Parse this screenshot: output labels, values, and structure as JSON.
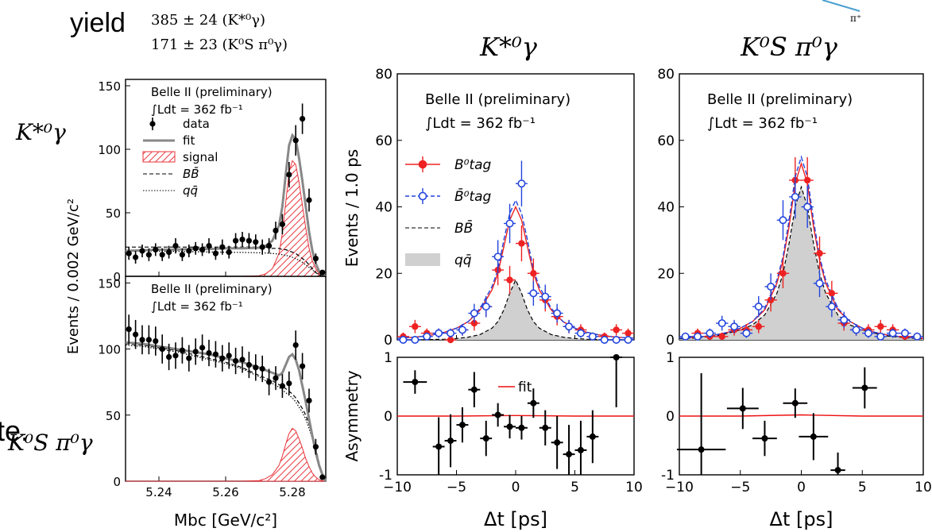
{
  "header": {
    "yield_label": "yield",
    "yield_kstar": "385 ± 24 (K*⁰γ)",
    "yield_ks": "171 ± 23 (K⁰S π⁰γ)"
  },
  "overlay": {
    "pi_label": "π⁺",
    "fragment_text": "te."
  },
  "colors": {
    "data": "#000000",
    "fit_gray": "#888888",
    "signal": "#e8333a",
    "btag": "#ee2222",
    "btagbar": "#2244dd",
    "qq_fill": "#d0d0d0",
    "frame": "#000000"
  },
  "chart_data": [
    {
      "id": "mbc_kstar",
      "type": "scatter",
      "row_label": "K*⁰γ",
      "xlim": [
        5.23,
        5.29
      ],
      "ylim": [
        0,
        155
      ],
      "yticks": [
        0,
        50,
        100,
        150
      ],
      "xticks": [
        5.24,
        5.26,
        5.28
      ],
      "show_xtick_labels": false,
      "ylabel": "Events / 0.002 GeV/c²",
      "xlabel": "",
      "text": [
        "Belle II (preliminary)",
        "∫Ldt = 362 fb⁻¹"
      ],
      "legend": [
        {
          "name": "data",
          "style": "data"
        },
        {
          "name": "fit",
          "style": "fit"
        },
        {
          "name": "signal",
          "style": "signal"
        },
        {
          "name": "BB̄",
          "style": "dashed"
        },
        {
          "name": "qq̄",
          "style": "dotted"
        }
      ],
      "data": {
        "x": [
          5.231,
          5.233,
          5.235,
          5.237,
          5.239,
          5.241,
          5.243,
          5.245,
          5.247,
          5.249,
          5.251,
          5.253,
          5.255,
          5.257,
          5.259,
          5.261,
          5.263,
          5.265,
          5.267,
          5.269,
          5.271,
          5.273,
          5.275,
          5.277,
          5.279,
          5.281,
          5.283,
          5.285,
          5.287,
          5.289
        ],
        "y": [
          18,
          15,
          20,
          17,
          21,
          17,
          19,
          24,
          17,
          20,
          22,
          21,
          24,
          18,
          23,
          19,
          28,
          29,
          28,
          27,
          23,
          24,
          36,
          41,
          80,
          107,
          124,
          60,
          14,
          3
        ],
        "err": [
          5,
          5,
          5,
          5,
          5,
          5,
          5,
          6,
          5,
          5,
          5,
          5,
          6,
          5,
          6,
          5,
          6,
          6,
          6,
          6,
          6,
          6,
          7,
          8,
          10,
          12,
          12,
          9,
          4,
          2
        ]
      },
      "curves": {
        "x": [
          5.23,
          5.235,
          5.24,
          5.245,
          5.25,
          5.255,
          5.26,
          5.265,
          5.27,
          5.272,
          5.274,
          5.276,
          5.277,
          5.278,
          5.279,
          5.28,
          5.281,
          5.282,
          5.283,
          5.284,
          5.285,
          5.286,
          5.287,
          5.288,
          5.289,
          5.29
        ],
        "fit": [
          20,
          20.5,
          21,
          21,
          21.5,
          21.5,
          22,
          22,
          22.5,
          24,
          28,
          40,
          55,
          80,
          103,
          111,
          108,
          93,
          75,
          55,
          35,
          20,
          10,
          4,
          1,
          0
        ],
        "signal": [
          0,
          0,
          0,
          0,
          0,
          0,
          0,
          0,
          0.5,
          2,
          6,
          18,
          34,
          58,
          82,
          91,
          88,
          74,
          56,
          38,
          22,
          12,
          6,
          2,
          0.5,
          0
        ],
        "bb": [
          23,
          23,
          23,
          23,
          23,
          23,
          23,
          23,
          23,
          23,
          22,
          22,
          21,
          21,
          20,
          19,
          18,
          16,
          14,
          12,
          9,
          6,
          3,
          1,
          0,
          0
        ],
        "qq": [
          20,
          20,
          19.8,
          19.6,
          19.4,
          19.2,
          19,
          18.8,
          18.5,
          18.3,
          18,
          17.5,
          17,
          16.5,
          16,
          15,
          14,
          12.5,
          11,
          9,
          7,
          5,
          3,
          1.5,
          0.5,
          0
        ]
      }
    },
    {
      "id": "mbc_ks",
      "type": "scatter",
      "row_label": "K⁰S π⁰γ",
      "xlim": [
        5.23,
        5.29
      ],
      "ylim": [
        0,
        155
      ],
      "yticks": [
        0,
        50,
        100,
        150
      ],
      "xticks": [
        5.24,
        5.26,
        5.28
      ],
      "show_xtick_labels": true,
      "xlabel": "Mbc [GeV/c²]",
      "text": [
        "Belle II (preliminary)",
        "∫Ldt = 362 fb⁻¹"
      ],
      "data": {
        "x": [
          5.231,
          5.233,
          5.235,
          5.237,
          5.239,
          5.241,
          5.243,
          5.245,
          5.247,
          5.249,
          5.251,
          5.253,
          5.255,
          5.257,
          5.259,
          5.261,
          5.263,
          5.265,
          5.267,
          5.269,
          5.271,
          5.273,
          5.275,
          5.277,
          5.279,
          5.281,
          5.283,
          5.285,
          5.287,
          5.289
        ],
        "y": [
          115,
          111,
          107,
          107,
          106,
          100,
          94,
          95,
          99,
          93,
          98,
          101,
          97,
          96,
          93,
          95,
          91,
          92,
          88,
          86,
          85,
          75,
          78,
          72,
          74,
          103,
          87,
          61,
          26,
          3
        ],
        "err": [
          11,
          11,
          11,
          11,
          11,
          11,
          10,
          10,
          10,
          10,
          10,
          10,
          10,
          10,
          10,
          10,
          10,
          10,
          10,
          10,
          10,
          10,
          9,
          9,
          9,
          11,
          10,
          9,
          6,
          2
        ]
      },
      "curves": {
        "x": [
          5.23,
          5.235,
          5.24,
          5.245,
          5.25,
          5.255,
          5.26,
          5.265,
          5.27,
          5.272,
          5.274,
          5.276,
          5.277,
          5.278,
          5.279,
          5.28,
          5.281,
          5.282,
          5.283,
          5.284,
          5.285,
          5.286,
          5.287,
          5.288,
          5.289,
          5.29
        ],
        "fit": [
          105,
          104,
          102,
          100,
          98,
          96,
          93,
          90,
          86,
          84,
          82,
          80,
          82,
          88,
          94,
          96,
          92,
          84,
          72,
          60,
          47,
          34,
          22,
          12,
          5,
          0
        ],
        "signal": [
          0,
          0,
          0,
          0,
          0,
          0,
          0,
          0,
          0.5,
          2,
          5,
          12,
          19,
          28,
          36,
          40,
          38,
          32,
          25,
          17,
          11,
          6,
          3,
          1,
          0.3,
          0
        ],
        "bb": [
          104,
          103,
          101,
          99,
          96,
          93,
          90,
          86,
          80,
          78,
          76,
          73,
          72,
          70,
          68,
          66,
          63,
          59,
          55,
          50,
          43,
          35,
          25,
          14,
          5,
          0
        ],
        "qq": [
          103,
          102,
          100,
          98,
          95,
          92,
          89,
          85,
          79,
          76,
          74,
          71,
          69,
          67,
          65,
          63,
          60,
          56,
          52,
          47,
          40,
          32,
          23,
          13,
          5,
          0
        ]
      }
    },
    {
      "id": "dt_kstar",
      "type": "scatter",
      "title": "K*⁰γ",
      "xlim": [
        -10,
        10
      ],
      "ylim": [
        0,
        80
      ],
      "yticks": [
        0,
        20,
        40,
        60,
        80
      ],
      "xticks": [
        -10,
        -5,
        0,
        5,
        10
      ],
      "show_xtick_labels": false,
      "ylabel": "Events / 1.0 ps",
      "text": [
        "Belle II (preliminary)",
        "∫Ldt = 362 fb⁻¹"
      ],
      "legend": [
        {
          "name": "B⁰tag",
          "style": "btag"
        },
        {
          "name": "B̄⁰tag",
          "style": "btagbar"
        },
        {
          "name": "BB̄",
          "style": "dashed"
        },
        {
          "name": "qq̄",
          "style": "qqfill"
        }
      ],
      "series": [
        {
          "style": "btag",
          "x": [
            -9.5,
            -8.5,
            -7.5,
            -6.5,
            -5.5,
            -4.5,
            -3.5,
            -2.5,
            -1.5,
            -0.5,
            0.5,
            1.5,
            2.5,
            3.5,
            4.5,
            5.5,
            6.5,
            7.5,
            8.5,
            9.5
          ],
          "y": [
            1,
            4,
            2,
            2,
            0,
            3,
            5,
            10,
            21,
            18,
            29,
            20,
            12,
            7,
            4,
            3,
            1,
            1,
            3,
            2
          ]
        },
        {
          "style": "btagbar",
          "x": [
            -9.5,
            -8.5,
            -7.5,
            -6.5,
            -5.5,
            -4.5,
            -3.5,
            -2.5,
            -1.5,
            -0.5,
            0.5,
            1.5,
            2.5,
            3.5,
            4.5,
            5.5,
            6.5,
            7.5,
            8.5,
            9.5
          ],
          "y": [
            0,
            0,
            1,
            2,
            2,
            3,
            8,
            10,
            25,
            35,
            47,
            14,
            13,
            8,
            4,
            2,
            1,
            0,
            0,
            0
          ]
        }
      ],
      "curves": {
        "x": [
          -10,
          -9,
          -8,
          -7,
          -6,
          -5,
          -4,
          -3,
          -2,
          -1.5,
          -1,
          -0.5,
          0,
          0.5,
          1,
          1.5,
          2,
          3,
          4,
          5,
          6,
          7,
          8,
          9,
          10
        ],
        "btag": [
          0.5,
          0.7,
          1,
          1.5,
          2.3,
          3.5,
          5.5,
          9,
          15,
          20,
          28,
          36,
          40,
          36,
          28,
          20,
          15,
          9,
          5.5,
          3.5,
          2.3,
          1.5,
          1,
          0.7,
          0.5
        ],
        "btagbar": [
          0.5,
          0.7,
          1,
          1.5,
          2.3,
          3.5,
          5.5,
          9.5,
          16,
          21,
          30,
          38,
          42,
          38,
          30,
          21,
          16,
          9.5,
          5.5,
          3.5,
          2.3,
          1.5,
          1,
          0.7,
          0.5
        ],
        "bb": [
          0,
          0,
          0,
          0.1,
          0.2,
          0.4,
          0.8,
          1.6,
          3.5,
          5.5,
          9,
          14,
          18,
          14,
          9,
          5.5,
          3.5,
          1.6,
          0.8,
          0.4,
          0.2,
          0.1,
          0,
          0,
          0
        ]
      }
    },
    {
      "id": "dt_ks",
      "type": "scatter",
      "title": "K⁰S π⁰γ",
      "xlim": [
        -10,
        10
      ],
      "ylim": [
        0,
        80
      ],
      "yticks": [
        0,
        20,
        40,
        60,
        80
      ],
      "xticks": [
        -10,
        -5,
        0,
        5,
        10
      ],
      "show_xtick_labels": false,
      "text": [
        "Belle II (preliminary)",
        "∫Ldt = 362 fb⁻¹"
      ],
      "series": [
        {
          "style": "btag",
          "x": [
            -9.5,
            -8.5,
            -7.5,
            -6.5,
            -5.5,
            -4.5,
            -3.5,
            -2.5,
            -1.5,
            -0.5,
            0.5,
            1.5,
            2.5,
            3.5,
            4.5,
            5.5,
            6.5,
            7.5,
            8.5,
            9.5
          ],
          "y": [
            1,
            2,
            1,
            1,
            3,
            3,
            4,
            12,
            20,
            48,
            48,
            26,
            14,
            5,
            3,
            3,
            4,
            3,
            1,
            1
          ]
        },
        {
          "style": "btagbar",
          "x": [
            -9.5,
            -8.5,
            -7.5,
            -6.5,
            -5.5,
            -4.5,
            -3.5,
            -2.5,
            -1.5,
            -0.5,
            0.5,
            1.5,
            2.5,
            3.5,
            4.5,
            5.5,
            6.5,
            7.5,
            8.5,
            9.5
          ],
          "y": [
            1,
            1,
            2,
            5,
            4,
            2,
            10,
            16,
            36,
            43,
            40,
            17,
            10,
            6,
            3,
            2,
            1,
            2,
            2,
            1
          ]
        }
      ],
      "curves": {
        "x": [
          -10,
          -9,
          -8,
          -7,
          -6,
          -5,
          -4,
          -3,
          -2,
          -1.5,
          -1,
          -0.5,
          0,
          0.5,
          1,
          1.5,
          2,
          3,
          4,
          5,
          6,
          7,
          8,
          9,
          10
        ],
        "btag": [
          0.5,
          0.7,
          1,
          1.5,
          2.3,
          3.5,
          5.5,
          9,
          17,
          24,
          34,
          47,
          53,
          47,
          34,
          24,
          17,
          9,
          5.5,
          3.5,
          2.3,
          1.5,
          1,
          0.7,
          0.5
        ],
        "btagbar": [
          0.5,
          0.7,
          1,
          1.5,
          2.3,
          3.5,
          5.5,
          9.5,
          18,
          25,
          36,
          49,
          55,
          49,
          36,
          25,
          18,
          9.5,
          5.5,
          3.5,
          2.3,
          1.5,
          1,
          0.7,
          0.5
        ],
        "bb": [
          0.3,
          0.5,
          0.8,
          1.2,
          2,
          3,
          4.5,
          7.5,
          14,
          20,
          29,
          40,
          46,
          40,
          29,
          20,
          14,
          7.5,
          4.5,
          3,
          2,
          1.2,
          0.8,
          0.5,
          0.3
        ]
      }
    },
    {
      "id": "asym_kstar",
      "type": "scatter",
      "xlim": [
        -10,
        10
      ],
      "ylim": [
        -1,
        1
      ],
      "yticks": [
        -1,
        0,
        1
      ],
      "xticks": [
        -10,
        -5,
        0,
        5,
        10
      ],
      "show_xtick_labels": true,
      "ylabel": "Asymmetry",
      "xlabel": "Δt [ps]",
      "legend": [
        {
          "name": "fit",
          "style": "redline"
        }
      ],
      "data": {
        "x": [
          -8.5,
          -6.5,
          -5.5,
          -4.5,
          -3.5,
          -2.5,
          -1.5,
          -0.5,
          0.5,
          1.5,
          2.5,
          3.5,
          4.5,
          5.5,
          6.5,
          8.5
        ],
        "y": [
          0.58,
          -0.52,
          -0.42,
          -0.15,
          0.45,
          -0.38,
          0.02,
          -0.18,
          -0.2,
          0.22,
          -0.2,
          -0.45,
          -0.65,
          -0.58,
          -0.35,
          1.0
        ],
        "yerr": [
          0.2,
          0.5,
          0.45,
          0.3,
          0.3,
          0.3,
          0.2,
          0.2,
          0.2,
          0.25,
          0.3,
          0.45,
          0.5,
          0.5,
          0.45,
          0.85
        ],
        "xerr": [
          1,
          0.5,
          0.5,
          0.5,
          0.5,
          0.5,
          0.5,
          0.5,
          0.5,
          0.5,
          0.5,
          0.5,
          0.5,
          0.5,
          0.5,
          0.5
        ]
      },
      "fit": {
        "x": [
          -10,
          -5,
          0,
          5,
          10
        ],
        "y": [
          0,
          0,
          0.01,
          0,
          0
        ]
      }
    },
    {
      "id": "asym_ks",
      "type": "scatter",
      "xlim": [
        -10,
        10
      ],
      "ylim": [
        -1,
        1
      ],
      "yticks": [
        -1,
        0,
        1
      ],
      "xticks": [
        -10,
        -5,
        0,
        5,
        10
      ],
      "show_xtick_labels": true,
      "xlabel": "Δt [ps]",
      "data": {
        "x": [
          -8.2,
          -4.8,
          -3,
          -0.5,
          1,
          3,
          5.2
        ],
        "y": [
          -0.57,
          0.13,
          -0.38,
          0.22,
          -0.35,
          -0.92,
          0.48
        ],
        "yerr": [
          1.3,
          0.35,
          0.3,
          0.25,
          0.4,
          0.3,
          0.35
        ],
        "xerr": [
          2,
          1.3,
          1,
          1,
          1.2,
          0.6,
          1
        ]
      },
      "fit": {
        "x": [
          -10,
          -5,
          0,
          5,
          10
        ],
        "y": [
          0,
          0,
          0.02,
          0,
          0
        ]
      }
    }
  ]
}
